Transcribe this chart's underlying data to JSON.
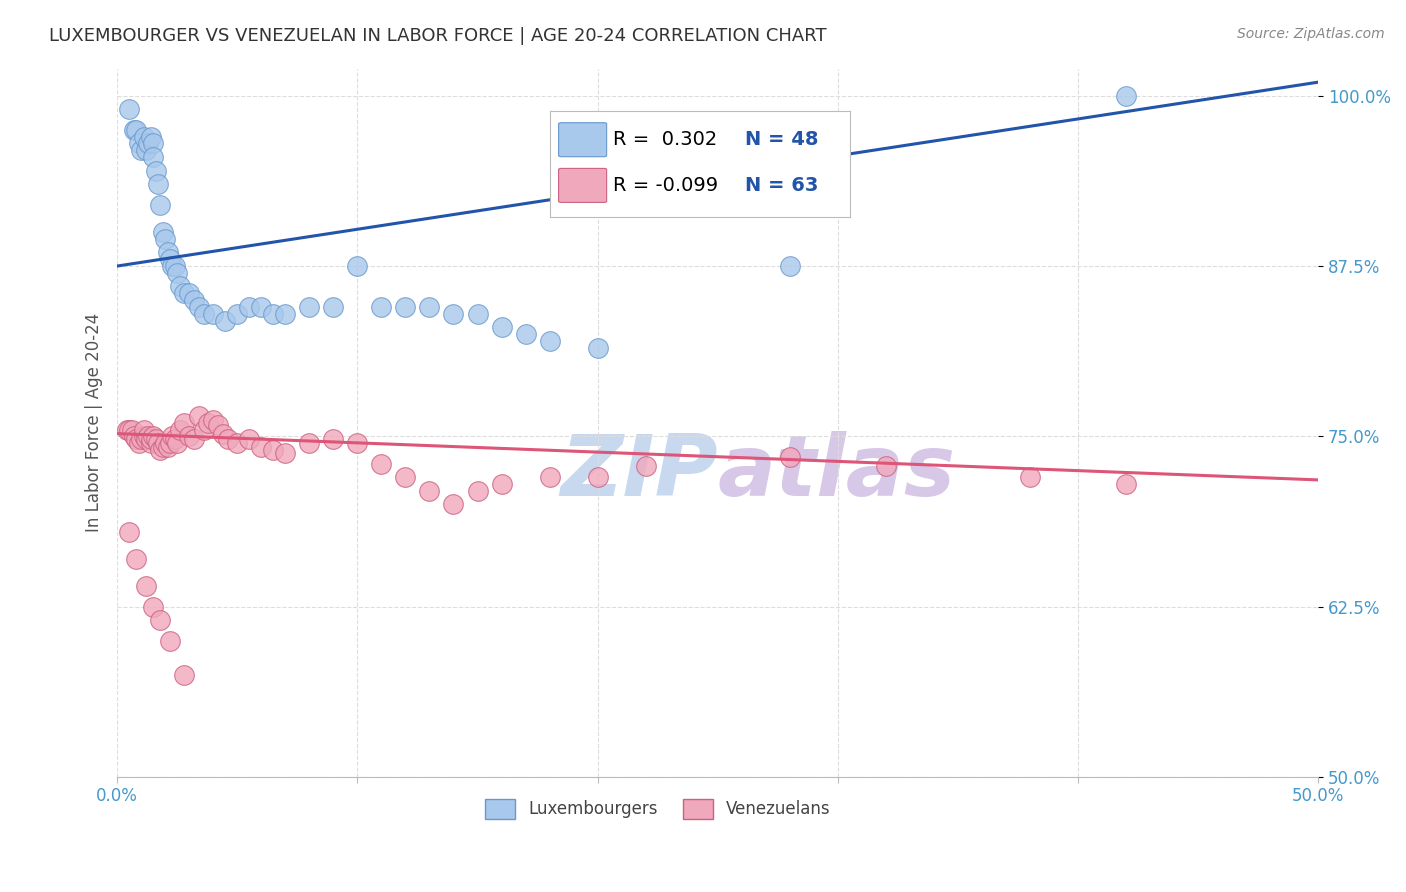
{
  "title": "LUXEMBOURGER VS VENEZUELAN IN LABOR FORCE | AGE 20-24 CORRELATION CHART",
  "source": "Source: ZipAtlas.com",
  "ylabel": "In Labor Force | Age 20-24",
  "xlim": [
    0.0,
    0.5
  ],
  "ylim": [
    0.5,
    1.02
  ],
  "xticks": [
    0.0,
    0.1,
    0.2,
    0.3,
    0.4,
    0.5
  ],
  "xticklabels": [
    "0.0%",
    "",
    "",
    "",
    "",
    "50.0%"
  ],
  "yticks": [
    0.5,
    0.625,
    0.75,
    0.875,
    1.0
  ],
  "yticklabels": [
    "50.0%",
    "62.5%",
    "75.0%",
    "87.5%",
    "100.0%"
  ],
  "blue_R": 0.302,
  "blue_N": 48,
  "pink_R": -0.099,
  "pink_N": 63,
  "blue_color": "#A8C8EC",
  "blue_edge": "#6898CC",
  "blue_line_color": "#2255AA",
  "pink_color": "#F0A8BC",
  "pink_edge": "#CC6080",
  "pink_line_color": "#DD5577",
  "watermark_zip_color": "#C8D8EE",
  "watermark_atlas_color": "#D8C8E8",
  "background_color": "#FFFFFF",
  "grid_color": "#DDDDDD",
  "title_color": "#333333",
  "axis_label_color": "#555555",
  "tick_label_color": "#4499CC",
  "legend_R_color": "#2255AA",
  "legend_N_color": "#2255AA",
  "blue_line_intercept": 0.875,
  "blue_line_slope": 0.27,
  "pink_line_intercept": 0.752,
  "pink_line_slope": -0.068,
  "blue_x": [
    0.005,
    0.007,
    0.008,
    0.009,
    0.01,
    0.011,
    0.012,
    0.013,
    0.014,
    0.015,
    0.015,
    0.016,
    0.017,
    0.018,
    0.019,
    0.02,
    0.021,
    0.022,
    0.023,
    0.024,
    0.025,
    0.026,
    0.028,
    0.03,
    0.032,
    0.034,
    0.036,
    0.04,
    0.045,
    0.05,
    0.055,
    0.06,
    0.065,
    0.07,
    0.08,
    0.09,
    0.1,
    0.11,
    0.12,
    0.13,
    0.14,
    0.15,
    0.16,
    0.17,
    0.18,
    0.2,
    0.28,
    0.42
  ],
  "blue_y": [
    0.99,
    0.975,
    0.975,
    0.965,
    0.96,
    0.97,
    0.96,
    0.965,
    0.97,
    0.965,
    0.955,
    0.945,
    0.935,
    0.92,
    0.9,
    0.895,
    0.885,
    0.88,
    0.875,
    0.875,
    0.87,
    0.86,
    0.855,
    0.855,
    0.85,
    0.845,
    0.84,
    0.84,
    0.835,
    0.84,
    0.845,
    0.845,
    0.84,
    0.84,
    0.845,
    0.845,
    0.875,
    0.845,
    0.845,
    0.845,
    0.84,
    0.84,
    0.83,
    0.825,
    0.82,
    0.815,
    0.875,
    1.0
  ],
  "pink_x": [
    0.004,
    0.005,
    0.006,
    0.007,
    0.008,
    0.009,
    0.01,
    0.011,
    0.011,
    0.012,
    0.013,
    0.014,
    0.014,
    0.015,
    0.016,
    0.017,
    0.018,
    0.019,
    0.02,
    0.021,
    0.022,
    0.023,
    0.024,
    0.025,
    0.026,
    0.028,
    0.03,
    0.032,
    0.034,
    0.036,
    0.038,
    0.04,
    0.042,
    0.044,
    0.046,
    0.05,
    0.055,
    0.06,
    0.065,
    0.07,
    0.08,
    0.09,
    0.1,
    0.11,
    0.12,
    0.13,
    0.14,
    0.15,
    0.16,
    0.18,
    0.2,
    0.22,
    0.28,
    0.32,
    0.38,
    0.42,
    0.005,
    0.008,
    0.012,
    0.015,
    0.018,
    0.022,
    0.028
  ],
  "pink_y": [
    0.755,
    0.755,
    0.755,
    0.75,
    0.748,
    0.745,
    0.748,
    0.75,
    0.755,
    0.748,
    0.75,
    0.745,
    0.748,
    0.75,
    0.748,
    0.745,
    0.74,
    0.742,
    0.745,
    0.742,
    0.745,
    0.75,
    0.748,
    0.745,
    0.755,
    0.76,
    0.75,
    0.748,
    0.765,
    0.755,
    0.76,
    0.762,
    0.758,
    0.752,
    0.748,
    0.745,
    0.748,
    0.742,
    0.74,
    0.738,
    0.745,
    0.748,
    0.745,
    0.73,
    0.72,
    0.71,
    0.7,
    0.71,
    0.715,
    0.72,
    0.72,
    0.728,
    0.735,
    0.728,
    0.72,
    0.715,
    0.68,
    0.66,
    0.64,
    0.625,
    0.615,
    0.6,
    0.575
  ]
}
